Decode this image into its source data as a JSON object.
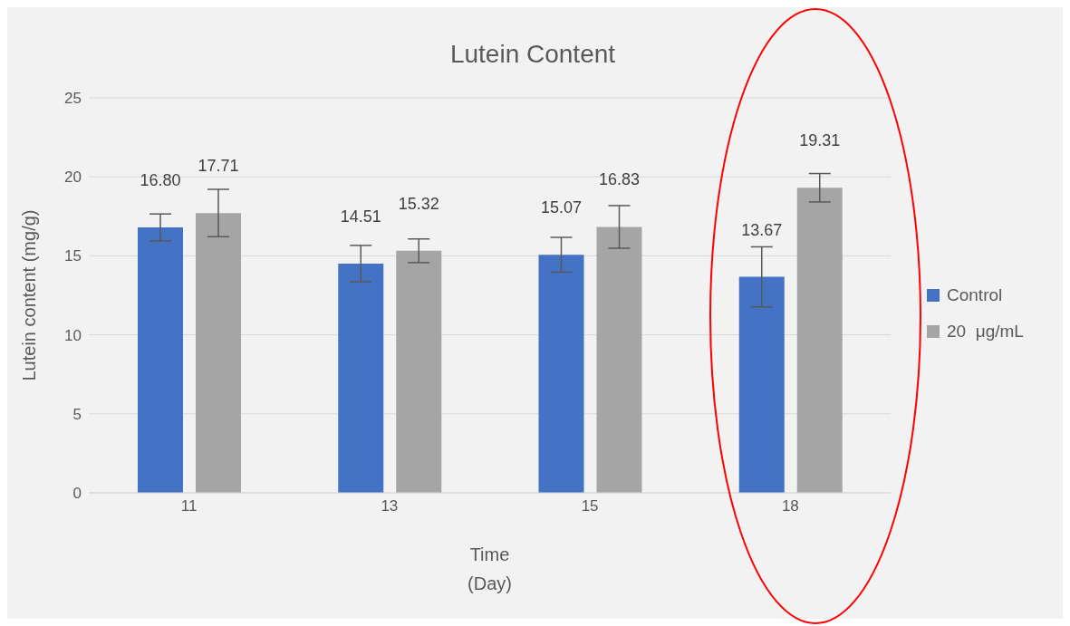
{
  "chart_data": {
    "type": "bar",
    "title": "Lutein Content",
    "xlabel": "Time\n(Day)",
    "ylabel": "Lutein content (mg/g)",
    "categories": [
      "11",
      "13",
      "15",
      "18"
    ],
    "series": [
      {
        "name": "Control",
        "color": "#4472c4",
        "values": [
          16.8,
          14.51,
          15.07,
          13.67
        ],
        "value_labels": [
          "16.80",
          "14.51",
          "15.07",
          "13.67"
        ],
        "errors": [
          0.85,
          1.15,
          1.1,
          1.9
        ]
      },
      {
        "name": "20  μg/mL",
        "color": "#a5a5a5",
        "values": [
          17.71,
          15.32,
          16.83,
          19.31
        ],
        "value_labels": [
          "17.71",
          "15.32",
          "16.83",
          "19.31"
        ],
        "errors": [
          1.5,
          0.75,
          1.35,
          0.9
        ]
      }
    ],
    "ylim": [
      0,
      25
    ],
    "yticks": [
      0,
      5,
      10,
      15,
      20,
      25
    ],
    "grid": "y",
    "legend": "right"
  }
}
